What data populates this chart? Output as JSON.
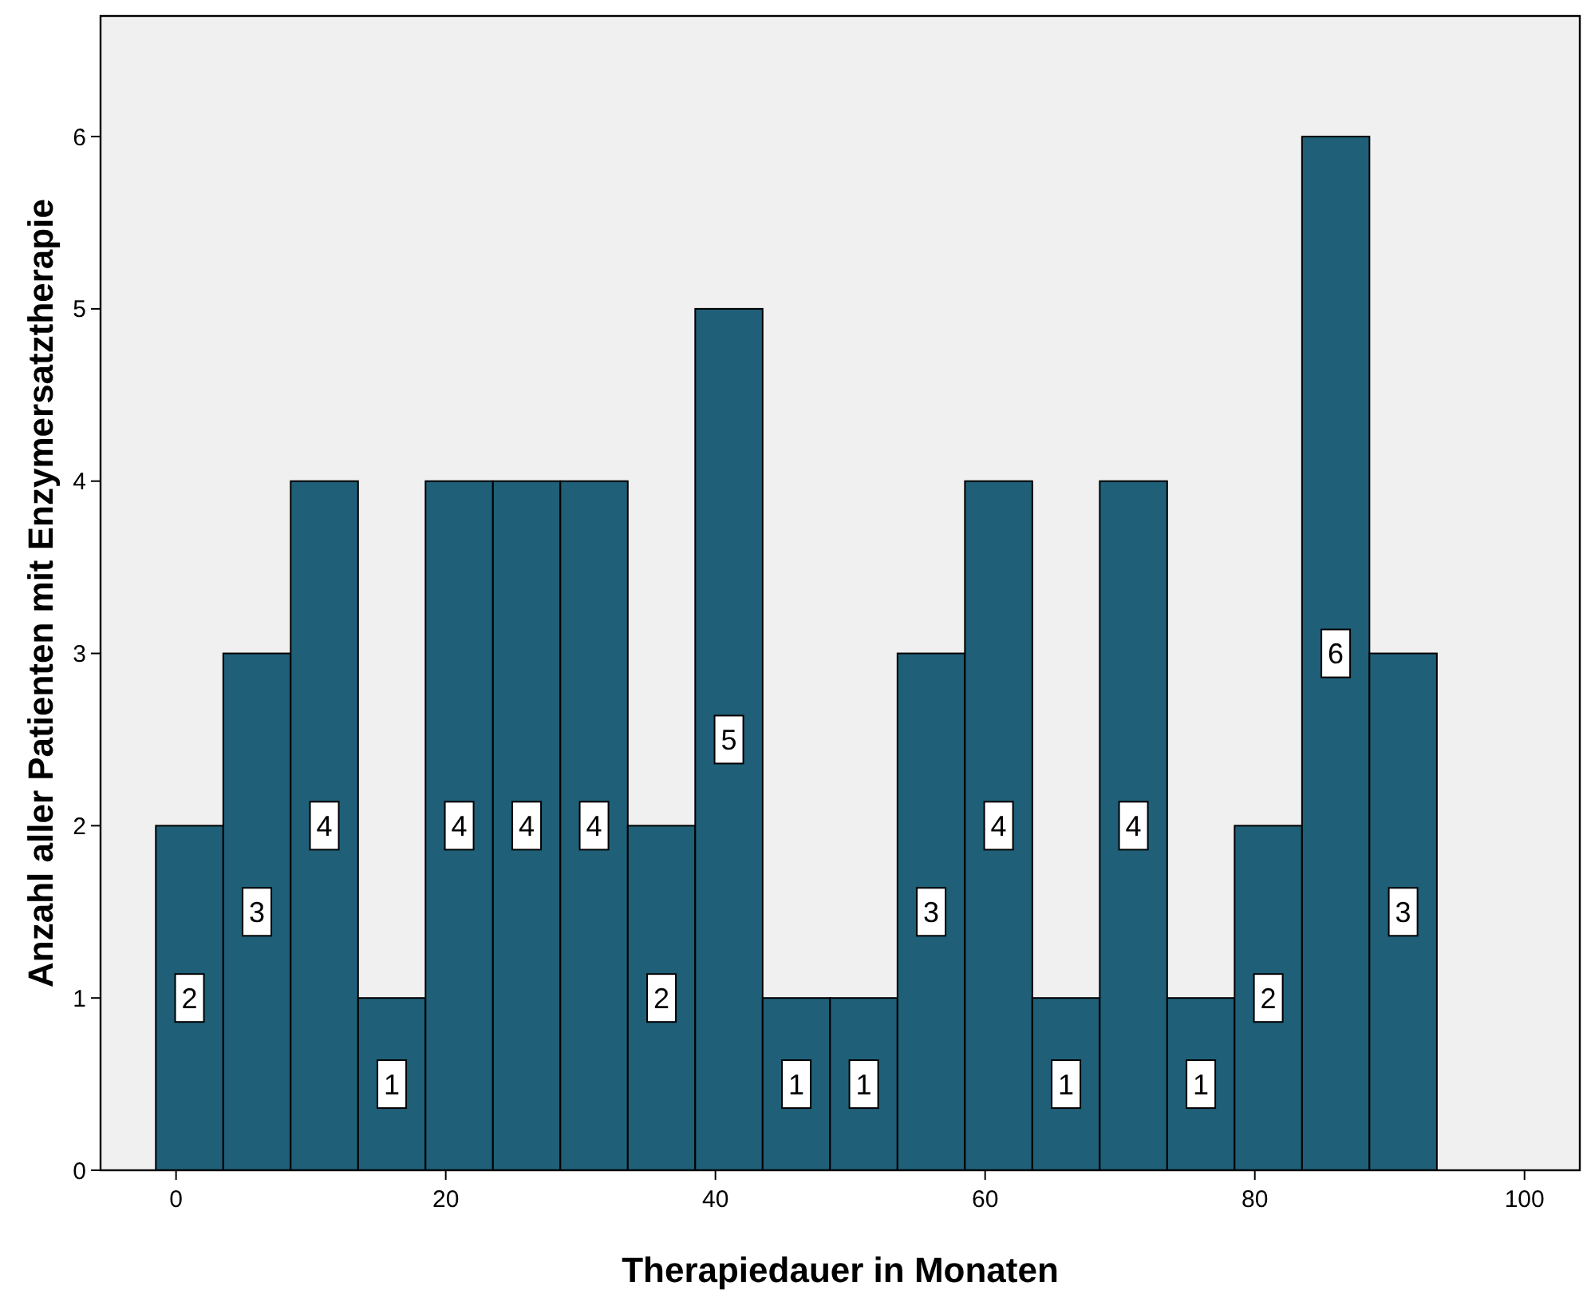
{
  "chart_data": {
    "type": "histogram",
    "xlabel": "Therapiedauer in Monaten",
    "ylabel": "Anzahl aller Patienten mit Enzymersatztherapie",
    "bins": [
      -1.5,
      3.5,
      8.5,
      13.5,
      18.5,
      23.5,
      28.5,
      33.5,
      38.5,
      43.5,
      48.5,
      53.5,
      58.5,
      63.5,
      68.5,
      73.5,
      78.5,
      83.5,
      88.5,
      93.5
    ],
    "values": [
      2,
      3,
      4,
      1,
      4,
      4,
      4,
      2,
      5,
      1,
      1,
      3,
      4,
      1,
      4,
      1,
      2,
      6,
      3
    ],
    "color": "#1f5f78",
    "data_labels": true,
    "xlim": [
      -5.6,
      104.1
    ],
    "xticks": [
      0,
      20,
      40,
      60,
      80,
      100
    ],
    "ylim": [
      0,
      6.7
    ],
    "yticks": [
      0,
      1,
      2,
      3,
      4,
      5,
      6
    ]
  }
}
